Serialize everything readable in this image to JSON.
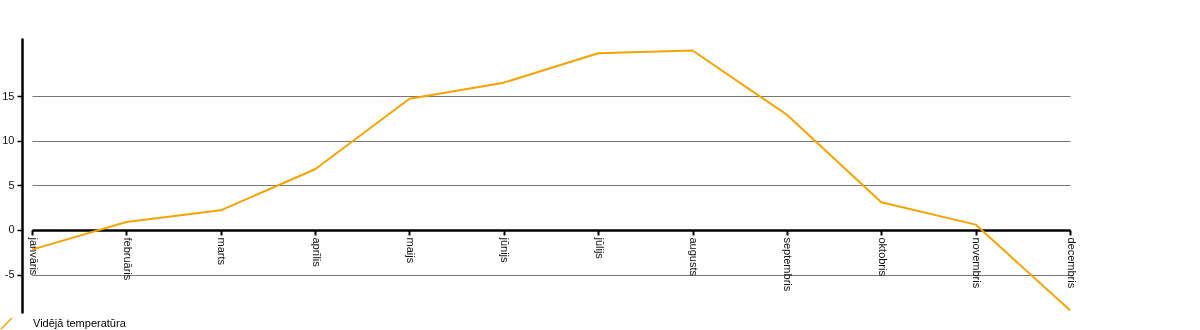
{
  "chart_data": {
    "type": "line",
    "categories": [
      "janvāris",
      "februāris",
      "marts",
      "aprīlis",
      "maijs",
      "jūnijs",
      "jūlijs",
      "augusts",
      "septembris",
      "oktobris",
      "novembris",
      "decembris"
    ],
    "series": [
      {
        "name": "Vidējā temperatūra",
        "color": "#f5a300",
        "values": [
          -2.2,
          0.9,
          2.2,
          6.8,
          14.7,
          16.5,
          19.8,
          20.1,
          12.9,
          3.1,
          0.6,
          -9.0
        ]
      }
    ],
    "ylim": [
      -9.3,
      21.5
    ],
    "yticks": [
      -5,
      0,
      5,
      10,
      15
    ],
    "grid": "y",
    "legend": "bottom left",
    "marker": "none",
    "line_style": "solid"
  }
}
